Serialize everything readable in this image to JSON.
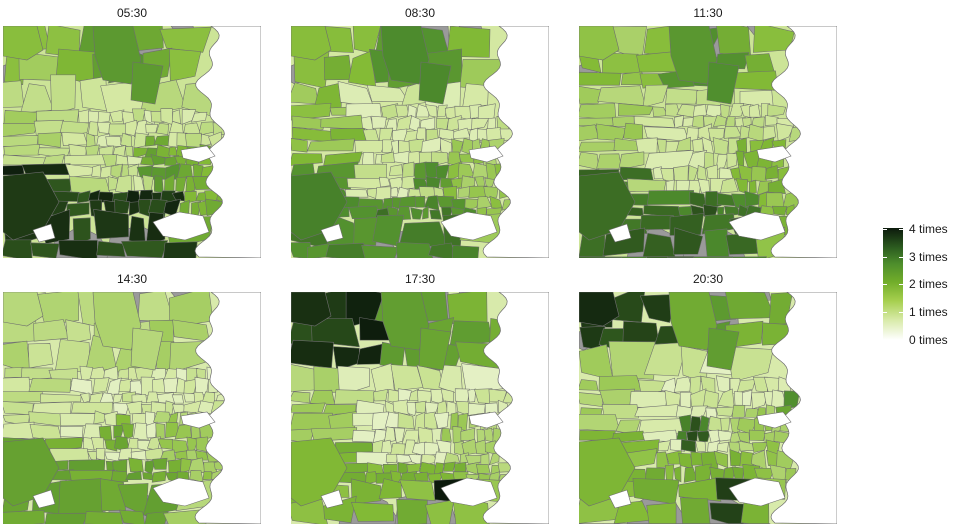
{
  "panels": [
    {
      "label": "05:30"
    },
    {
      "label": "08:30"
    },
    {
      "label": "11:30"
    },
    {
      "label": "14:30"
    },
    {
      "label": "17:30"
    },
    {
      "label": "20:30"
    }
  ],
  "legend": {
    "labels": [
      "4 times",
      "3 times",
      "2 times",
      "1 times",
      "0 times"
    ],
    "scale_min": 0,
    "scale_max": 4
  },
  "colors": {
    "high": "#0c1a0c",
    "mid": "#71ad2a",
    "low": "#ffffff",
    "no_data": "#9a9a9a",
    "boundary": "#6e6e6e"
  }
}
